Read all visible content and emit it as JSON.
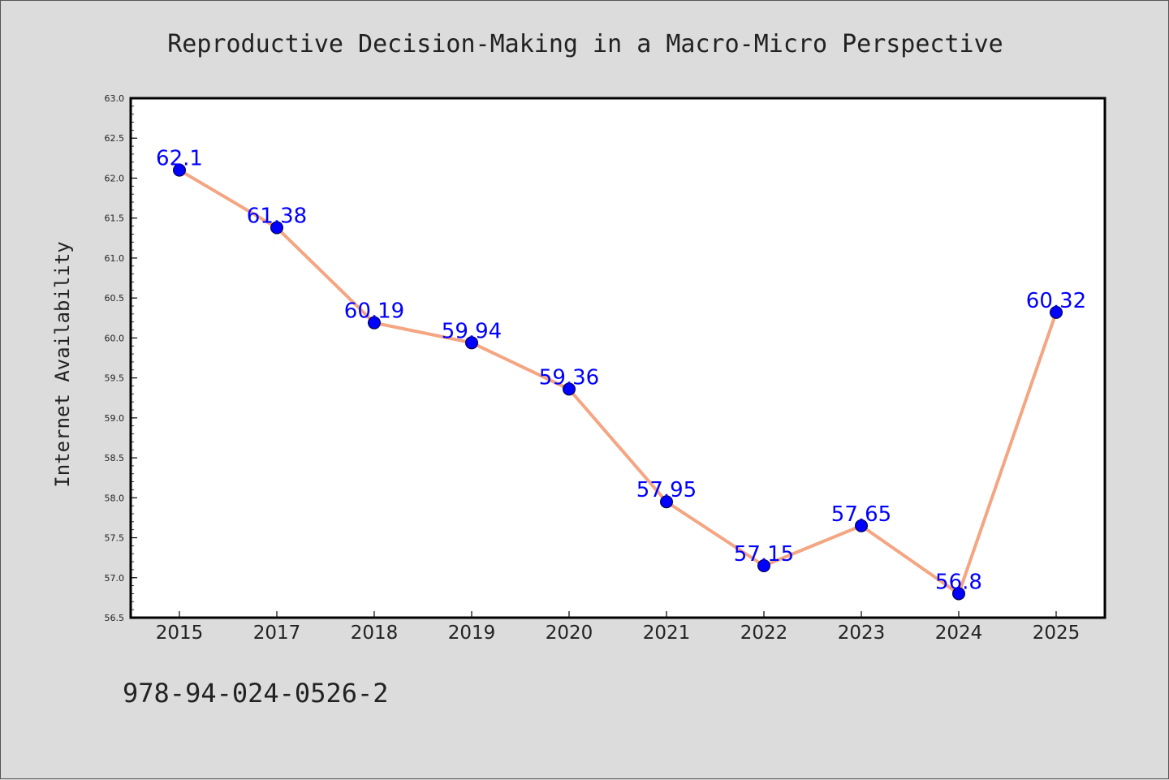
{
  "chart_data": {
    "type": "line",
    "title": "Reproductive Decision-Making in a Macro-Micro Perspective",
    "xlabel": "",
    "ylabel": "Internet Availability",
    "categories": [
      "2015",
      "2017",
      "2018",
      "2019",
      "2020",
      "2021",
      "2022",
      "2023",
      "2024",
      "2025"
    ],
    "series": [
      {
        "values": [
          62.1,
          61.38,
          60.19,
          59.94,
          59.36,
          57.95,
          57.15,
          57.65,
          56.8,
          60.32
        ],
        "labels": [
          "62.1",
          "61.38",
          "60.19",
          "59.94",
          "59.36",
          "57.95",
          "57.15",
          "57.65",
          "56.8",
          "60.32"
        ]
      }
    ],
    "ylim": [
      56.5,
      63.0
    ],
    "yticks": [
      "56.5",
      "57.0",
      "57.5",
      "58.0",
      "58.5",
      "59.0",
      "59.5",
      "60.0",
      "60.5",
      "61.0",
      "61.5",
      "62.0",
      "62.5",
      "63.0"
    ],
    "grid": false,
    "legend": "none",
    "colors": {
      "line": "#f4a582",
      "marker": "#0000ff",
      "data_label": "#0000ff",
      "plot_background": "#ffffff",
      "figure_background": "#dcdcdc"
    }
  },
  "footer": {
    "isbn": "978-94-024-0526-2"
  }
}
